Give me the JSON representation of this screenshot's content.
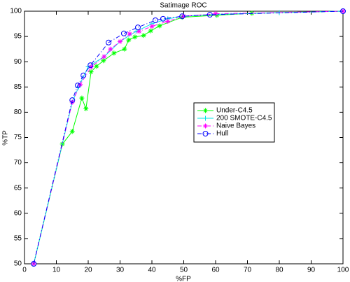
{
  "chart_data": {
    "type": "line",
    "title": "Satimage ROC",
    "x_label": "%FP",
    "y_label": "%TP",
    "xlim": [
      0,
      100
    ],
    "xticks": [
      0,
      10,
      20,
      30,
      40,
      50,
      60,
      70,
      80,
      90,
      100
    ],
    "ylim": [
      50,
      100
    ],
    "yticks": [
      50,
      55,
      60,
      65,
      70,
      75,
      80,
      85,
      90,
      95,
      100
    ],
    "grid": false,
    "legend": "center right",
    "series": [
      {
        "name": "Under-C4.5",
        "color": "#00ff00",
        "marker": "star",
        "linestyle": "solid",
        "x": [
          2.9,
          11.9,
          15,
          18,
          19.3,
          20.9,
          22.6,
          24.8,
          28.1,
          31.4,
          32.7,
          34.7,
          37.4,
          39.6,
          42.4,
          49.5,
          60.4,
          71.4,
          100
        ],
        "values": [
          50,
          73.7,
          76.2,
          82.8,
          80.7,
          88,
          89.1,
          90.2,
          91.7,
          92.5,
          94.3,
          94.9,
          95.2,
          96.1,
          97.1,
          98.8,
          99.2,
          99.6,
          100
        ]
      },
      {
        "name": "200 SMOTE-C4.5",
        "color": "#00e5e5",
        "marker": "plus",
        "linestyle": "solid",
        "x": [
          2.9,
          15,
          17,
          20,
          25,
          30,
          35,
          40,
          45,
          50,
          60,
          80,
          100
        ],
        "values": [
          50,
          82,
          85,
          89,
          91,
          94,
          96,
          97.5,
          98.5,
          99,
          99.4,
          99.7,
          100
        ]
      },
      {
        "name": "Naive Bayes",
        "color": "#ff00ff",
        "marker": "star",
        "linestyle": "dashdot",
        "x": [
          2.9,
          15,
          17.5,
          21,
          25,
          27,
          30,
          33,
          36,
          40,
          45,
          50,
          60,
          100
        ],
        "values": [
          50,
          82,
          85.5,
          89,
          91,
          92.5,
          94,
          95.5,
          96,
          97,
          98,
          99,
          99.5,
          100
        ]
      },
      {
        "name": "Hull",
        "color": "#0000ff",
        "marker": "circle",
        "linestyle": "dashdot",
        "x": [
          2.9,
          15,
          16.7,
          18.5,
          20.7,
          26.4,
          31.2,
          35.6,
          41.1,
          43.5,
          49.5,
          58.2,
          100
        ],
        "values": [
          50,
          82.4,
          85.3,
          87.3,
          89.3,
          93.8,
          95.6,
          96.8,
          98.2,
          98.5,
          99,
          99.3,
          100
        ]
      }
    ]
  }
}
